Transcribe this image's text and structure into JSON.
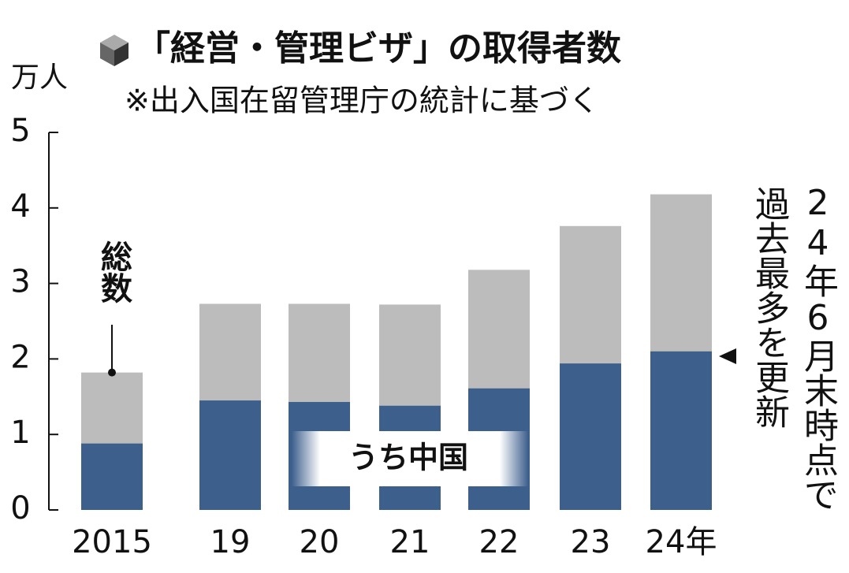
{
  "chart_data": {
    "type": "bar",
    "overlap": true,
    "title": "「経営・管理ビザ」の取得者数",
    "subtitle": "※出入国在留管理庁の統計に基づく",
    "y_label": "万人",
    "categories": [
      "2015",
      "19",
      "20",
      "21",
      "22",
      "23",
      "24年"
    ],
    "series": [
      {
        "name": "総数",
        "color": "#bcbcbc",
        "values": [
          1.82,
          2.73,
          2.73,
          2.72,
          3.18,
          3.76,
          4.18
        ]
      },
      {
        "name": "うち中国",
        "color": "#3d5f8c",
        "values": [
          0.88,
          1.45,
          1.43,
          1.38,
          1.61,
          1.94,
          2.1
        ]
      }
    ],
    "annotations": [
      "24年6月末時点で",
      "過去最多を更新"
    ],
    "ylim": [
      0,
      5
    ],
    "yticks": [
      0,
      1,
      2,
      3,
      4,
      5
    ],
    "grid": false
  }
}
